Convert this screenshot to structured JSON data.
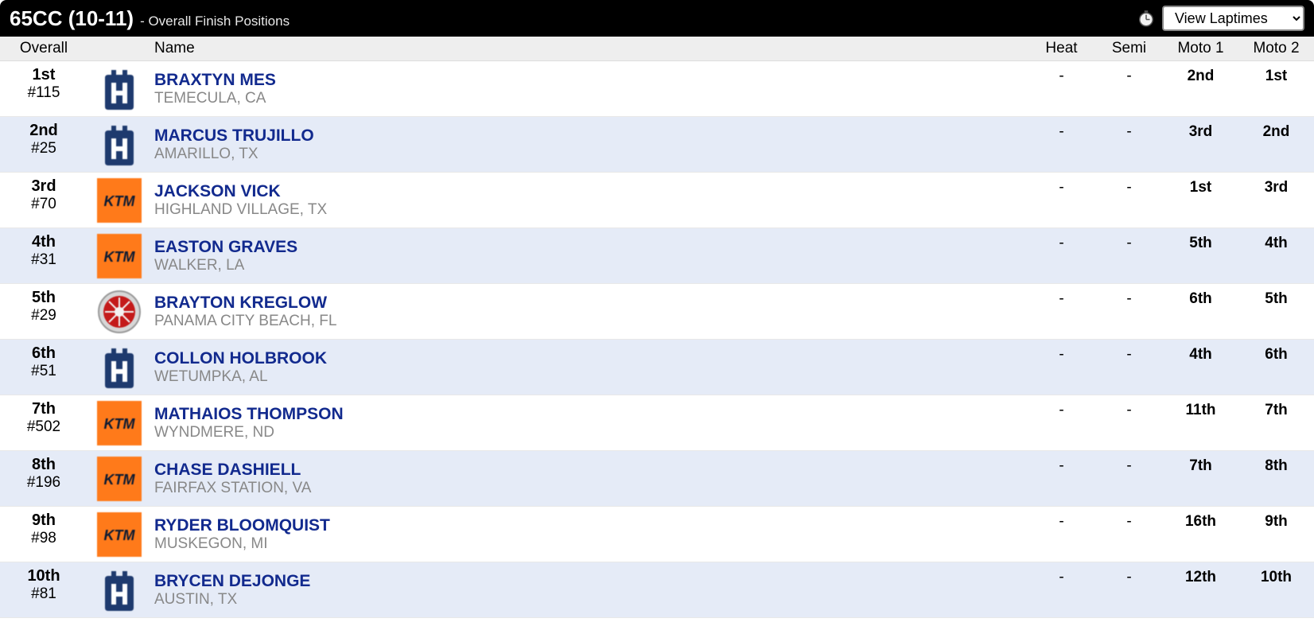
{
  "header": {
    "title": "65CC (10-11)",
    "subtitle": "- Overall Finish Positions",
    "laptimes_label": "View Laptimes"
  },
  "columns": {
    "overall": "Overall",
    "name": "Name",
    "heat": "Heat",
    "semi": "Semi",
    "moto1": "Moto 1",
    "moto2": "Moto 2"
  },
  "brands": {
    "husqvarna": {
      "bg": "#1e3a6e",
      "fg": "#ffffff",
      "type": "h"
    },
    "ktm": {
      "bg": "#ff7a1a",
      "fg": "#0a1a33",
      "type": "ktm"
    },
    "yamaha": {
      "bg": "#d7d7d7",
      "fg": "#c41a1a",
      "type": "yam"
    }
  },
  "rows": [
    {
      "pos": "1st",
      "num": "#115",
      "brand": "husqvarna",
      "name": "BRAXTYN MES",
      "loc": "TEMECULA, CA",
      "heat": "-",
      "semi": "-",
      "moto1": "2nd",
      "moto2": "1st"
    },
    {
      "pos": "2nd",
      "num": "#25",
      "brand": "husqvarna",
      "name": "MARCUS TRUJILLO",
      "loc": "AMARILLO, TX",
      "heat": "-",
      "semi": "-",
      "moto1": "3rd",
      "moto2": "2nd"
    },
    {
      "pos": "3rd",
      "num": "#70",
      "brand": "ktm",
      "name": "JACKSON VICK",
      "loc": "HIGHLAND VILLAGE, TX",
      "heat": "-",
      "semi": "-",
      "moto1": "1st",
      "moto2": "3rd"
    },
    {
      "pos": "4th",
      "num": "#31",
      "brand": "ktm",
      "name": "EASTON GRAVES",
      "loc": "WALKER, LA",
      "heat": "-",
      "semi": "-",
      "moto1": "5th",
      "moto2": "4th"
    },
    {
      "pos": "5th",
      "num": "#29",
      "brand": "yamaha",
      "name": "BRAYTON KREGLOW",
      "loc": "PANAMA CITY BEACH, FL",
      "heat": "-",
      "semi": "-",
      "moto1": "6th",
      "moto2": "5th"
    },
    {
      "pos": "6th",
      "num": "#51",
      "brand": "husqvarna",
      "name": "COLLON HOLBROOK",
      "loc": "WETUMPKA, AL",
      "heat": "-",
      "semi": "-",
      "moto1": "4th",
      "moto2": "6th"
    },
    {
      "pos": "7th",
      "num": "#502",
      "brand": "ktm",
      "name": "MATHAIOS THOMPSON",
      "loc": "WYNDMERE, ND",
      "heat": "-",
      "semi": "-",
      "moto1": "11th",
      "moto2": "7th"
    },
    {
      "pos": "8th",
      "num": "#196",
      "brand": "ktm",
      "name": "CHASE DASHIELL",
      "loc": "FAIRFAX STATION, VA",
      "heat": "-",
      "semi": "-",
      "moto1": "7th",
      "moto2": "8th"
    },
    {
      "pos": "9th",
      "num": "#98",
      "brand": "ktm",
      "name": "RYDER BLOOMQUIST",
      "loc": "MUSKEGON, MI",
      "heat": "-",
      "semi": "-",
      "moto1": "16th",
      "moto2": "9th"
    },
    {
      "pos": "10th",
      "num": "#81",
      "brand": "husqvarna",
      "name": "BRYCEN DEJONGE",
      "loc": "AUSTIN, TX",
      "heat": "-",
      "semi": "-",
      "moto1": "12th",
      "moto2": "10th"
    }
  ],
  "styling": {
    "header_bg": "#000000",
    "alt_row_bg": "#e5ebf7",
    "link_color": "#122a8e",
    "muted_color": "#888888",
    "columns_header_bg": "#eeeeee"
  }
}
